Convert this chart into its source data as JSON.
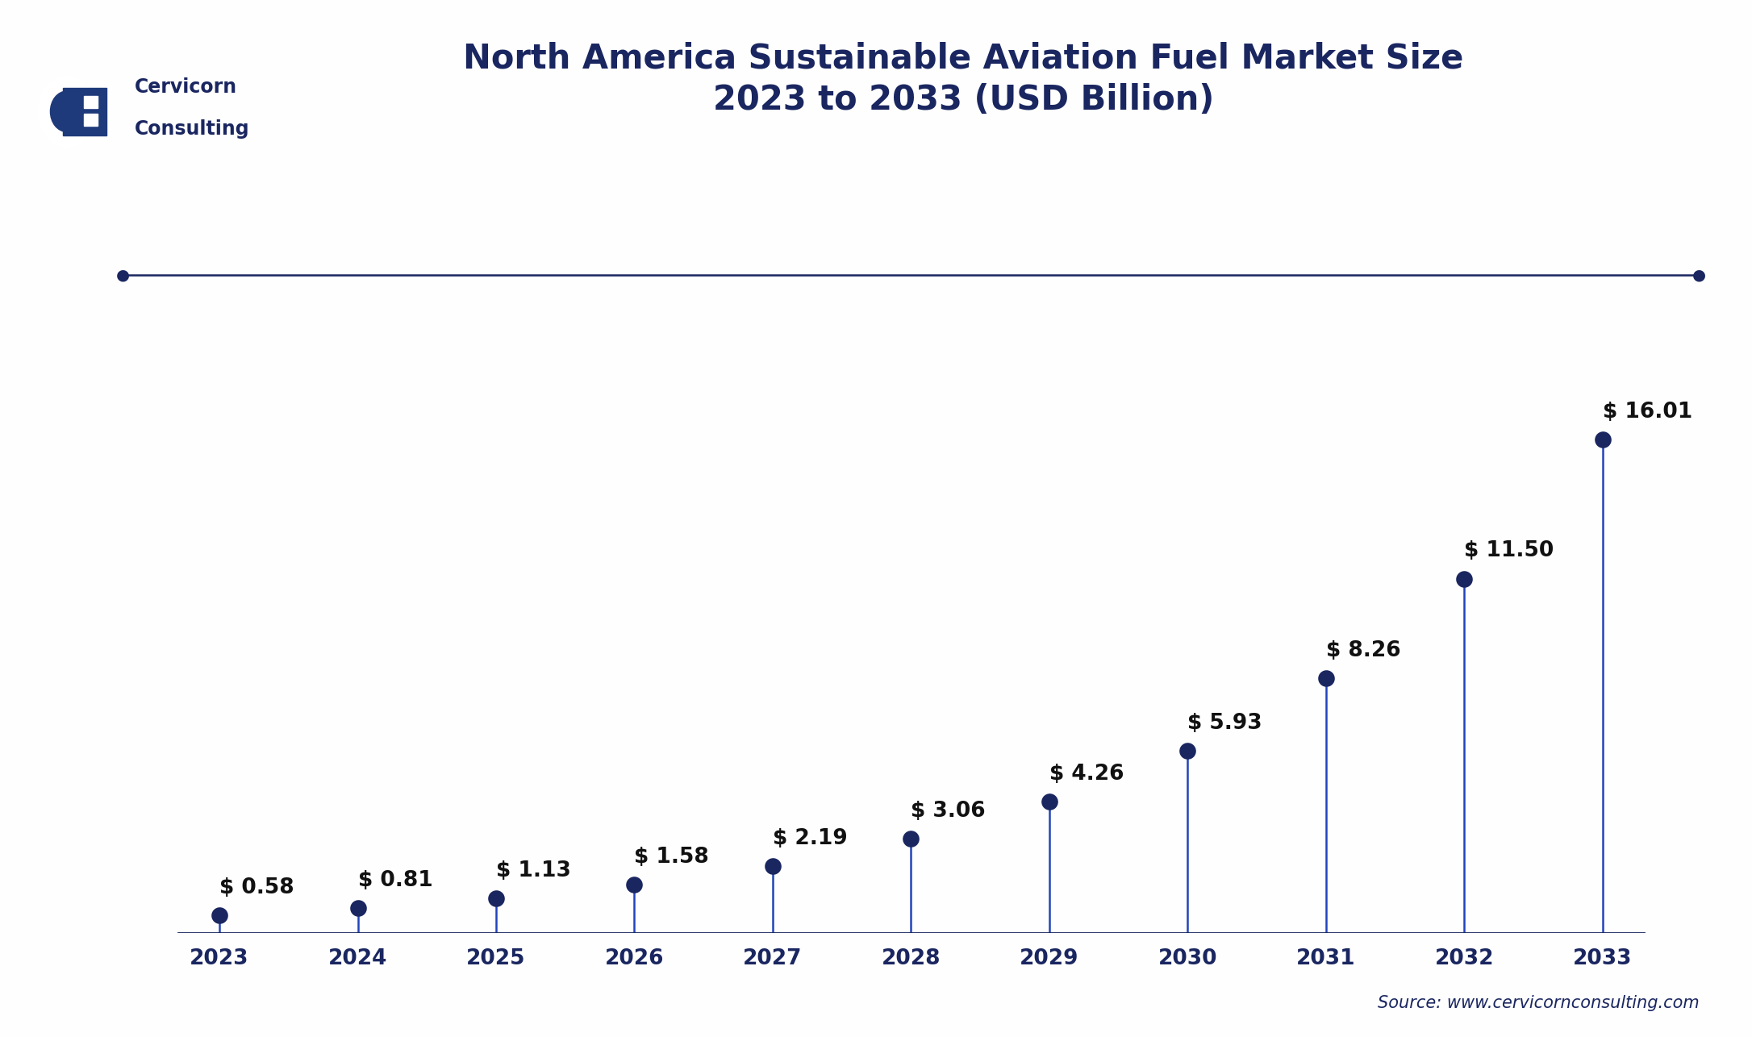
{
  "title_line1": "North America Sustainable Aviation Fuel Market Size",
  "title_line2": "2023 to 2033 (USD Billion)",
  "years": [
    2023,
    2024,
    2025,
    2026,
    2027,
    2028,
    2029,
    2030,
    2031,
    2032,
    2033
  ],
  "values": [
    0.58,
    0.81,
    1.13,
    1.58,
    2.19,
    3.06,
    4.26,
    5.93,
    8.26,
    11.5,
    16.01
  ],
  "labels": [
    "$ 0.58",
    "$ 0.81",
    "$ 1.13",
    "$ 1.58",
    "$ 2.19",
    "$ 3.06",
    "$ 4.26",
    "$ 5.93",
    "$ 8.26",
    "$ 11.50",
    "$ 16.01"
  ],
  "line_color": "#1a2660",
  "dot_color": "#1a2660",
  "stem_color": "#2244bb",
  "background_color": "#fefefe",
  "text_color": "#1a2660",
  "label_color": "#111111",
  "source_text": "Source: www.cervicornconsulting.com",
  "ylim_max": 19.5,
  "title_fontsize": 30,
  "label_fontsize": 19,
  "tick_fontsize": 19,
  "source_fontsize": 15
}
